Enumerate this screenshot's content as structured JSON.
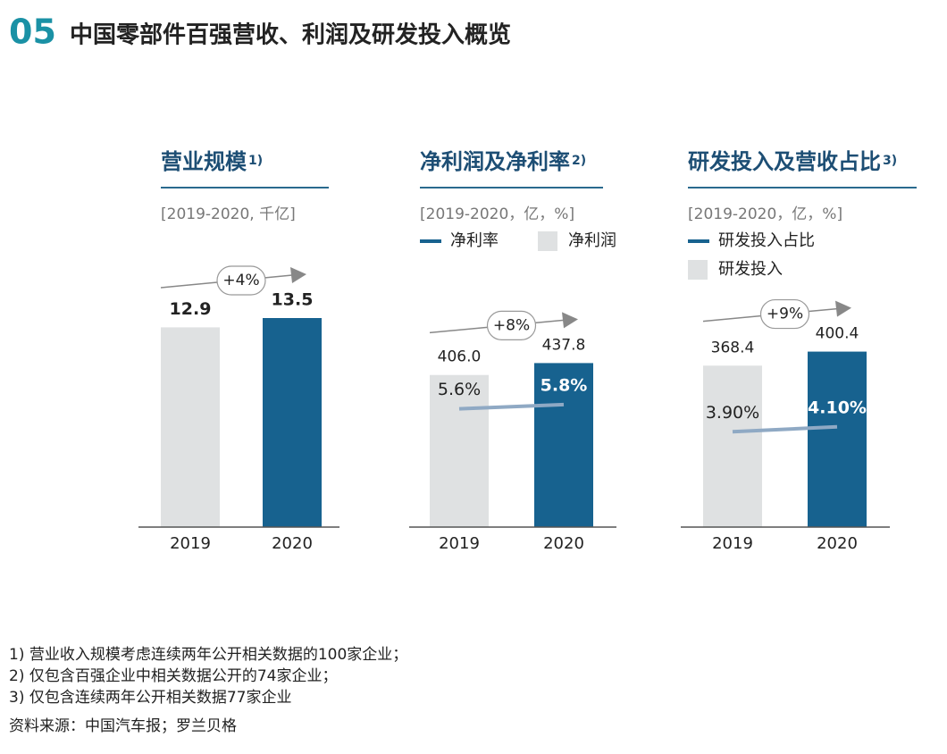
{
  "header": {
    "number": "05",
    "title": "中国零部件百强营收、利润及研发投入概览"
  },
  "chart_data": [
    {
      "type": "bar",
      "title": "营业规模",
      "title_note": "1)",
      "subtitle": "[2019-2020, 千亿]",
      "growth": "+4%",
      "categories": [
        "2019",
        "2020"
      ],
      "values": [
        12.9,
        13.5
      ],
      "colors": [
        "#dfe1e2",
        "#17628f"
      ],
      "ylim": [
        0,
        15
      ]
    },
    {
      "type": "bar",
      "title": "净利润及净利率",
      "title_note": "2)",
      "subtitle": "[2019-2020，亿，%]",
      "growth": "+8%",
      "categories": [
        "2019",
        "2020"
      ],
      "ylim": [
        0,
        620
      ],
      "y2lim": [
        0,
        11
      ],
      "series": [
        {
          "name": "净利率",
          "type": "line",
          "axis": "y2",
          "color": "#8fa9c4",
          "values": [
            5.6,
            5.8
          ],
          "value_labels": [
            "5.6%",
            "5.8%"
          ]
        },
        {
          "name": "净利润",
          "type": "bar",
          "color": "#dfe1e2",
          "colors": [
            "#dfe1e2",
            "#17628f"
          ],
          "values": [
            406.0,
            437.8
          ],
          "value_labels": [
            "406.0",
            "437.8"
          ]
        }
      ]
    },
    {
      "type": "bar",
      "title": "研发投入及营收占比",
      "title_note": "3)",
      "subtitle": "[2019-2020，亿，%]",
      "growth": "+9%",
      "categories": [
        "2019",
        "2020"
      ],
      "ylim": [
        0,
        530
      ],
      "y2lim": [
        0,
        9.5
      ],
      "series": [
        {
          "name": "研发投入占比",
          "type": "line",
          "axis": "y2",
          "color": "#8fa9c4",
          "values": [
            3.9,
            4.1
          ],
          "value_labels": [
            "3.90%",
            "4.10%"
          ]
        },
        {
          "name": "研发投入",
          "type": "bar",
          "color": "#dfe1e2",
          "colors": [
            "#dfe1e2",
            "#17628f"
          ],
          "values": [
            368.4,
            400.4
          ]
        }
      ]
    }
  ],
  "footnotes": [
    "1) 营业收入规模考虑连续两年公开相关数据的100家企业；",
    "2) 仅包含百强企业中相关数据公开的74家企业；",
    "3) 仅包含连续两年公开相关数据77家企业"
  ],
  "source": "资料来源：中国汽车报；罗兰贝格"
}
